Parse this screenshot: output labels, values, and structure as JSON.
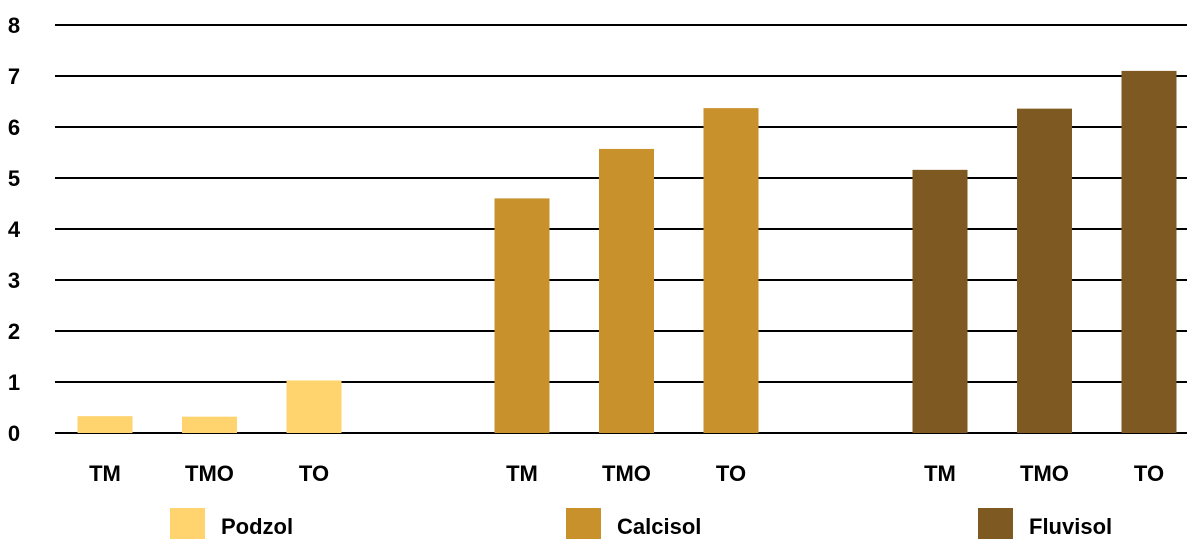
{
  "chart_data": {
    "type": "bar",
    "ylim": [
      0,
      8
    ],
    "yticks": [
      "0",
      "1",
      "2",
      "3",
      "4",
      "5",
      "6",
      "7",
      "8"
    ],
    "grid": true,
    "legend_position": "bottom",
    "groups": [
      {
        "name": "Podzol",
        "color": "#FFD36E",
        "categories": [
          "TM",
          "TMO",
          "TO"
        ],
        "values": [
          0.33,
          0.32,
          1.03
        ]
      },
      {
        "name": "Calcisol",
        "color": "#C8912C",
        "categories": [
          "TM",
          "TMO",
          "TO"
        ],
        "values": [
          4.6,
          5.57,
          6.37
        ]
      },
      {
        "name": "Fluvisol",
        "color": "#7E5A22",
        "categories": [
          "TM",
          "TMO",
          "TO"
        ],
        "values": [
          5.16,
          6.36,
          7.1
        ]
      }
    ]
  }
}
